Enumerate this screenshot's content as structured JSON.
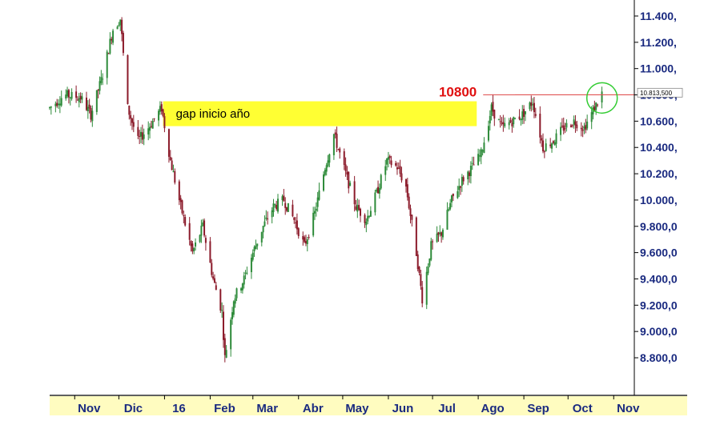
{
  "chart_data": {
    "type": "candlestick",
    "title": "",
    "xlabel": "",
    "ylabel": "",
    "ylim": [
      8500,
      11500
    ],
    "y_ticks": [
      "11.400,",
      "11.200,",
      "11.000,",
      "10.800,",
      "10.600,",
      "10.400,",
      "10.200,",
      "10.000,",
      "9.800,0",
      "9.600,0",
      "9.400,0",
      "9.200,0",
      "9.000,0",
      "8.800,0"
    ],
    "y_tick_values": [
      11400,
      11200,
      11000,
      10800,
      10600,
      10400,
      10200,
      10000,
      9800,
      9600,
      9400,
      9200,
      9000,
      8800
    ],
    "x_ticks": [
      "Nov",
      "Dic",
      "16",
      "Feb",
      "Mar",
      "Abr",
      "May",
      "Jun",
      "Jul",
      "Ago",
      "Sep",
      "Oct",
      "Nov"
    ],
    "x_tick_dates": [
      "2015-11-01",
      "2015-12-01",
      "2016-01-01",
      "2016-02-01",
      "2016-03-01",
      "2016-04-01",
      "2016-05-01",
      "2016-06-01",
      "2016-07-01",
      "2016-08-01",
      "2016-09-01",
      "2016-10-01",
      "2016-11-01"
    ],
    "x_range": [
      "2015-10-15",
      "2016-11-15"
    ],
    "grid": false,
    "up_color": "#2e8b3a",
    "down_color": "#8b1a2a",
    "price_path": [
      [
        "2015-10-15",
        10700
      ],
      [
        "2015-10-25",
        10800
      ],
      [
        "2015-11-05",
        10780
      ],
      [
        "2015-11-12",
        10650
      ],
      [
        "2015-11-20",
        10950
      ],
      [
        "2015-11-27",
        11300
      ],
      [
        "2015-12-02",
        11380
      ],
      [
        "2015-12-07",
        10700
      ],
      [
        "2015-12-14",
        10450
      ],
      [
        "2015-12-21",
        10550
      ],
      [
        "2015-12-30",
        10700
      ],
      [
        "2016-01-05",
        10300
      ],
      [
        "2016-01-12",
        9950
      ],
      [
        "2016-01-20",
        9600
      ],
      [
        "2016-01-27",
        9800
      ],
      [
        "2016-02-03",
        9400
      ],
      [
        "2016-02-09",
        9150
      ],
      [
        "2016-02-11",
        8800
      ],
      [
        "2016-02-17",
        9250
      ],
      [
        "2016-02-24",
        9400
      ],
      [
        "2016-03-01",
        9600
      ],
      [
        "2016-03-08",
        9800
      ],
      [
        "2016-03-15",
        9950
      ],
      [
        "2016-03-22",
        10000
      ],
      [
        "2016-03-29",
        9850
      ],
      [
        "2016-04-05",
        9650
      ],
      [
        "2016-04-12",
        9900
      ],
      [
        "2016-04-19",
        10250
      ],
      [
        "2016-04-25",
        10500
      ],
      [
        "2016-05-03",
        10200
      ],
      [
        "2016-05-10",
        9950
      ],
      [
        "2016-05-17",
        9850
      ],
      [
        "2016-05-24",
        10050
      ],
      [
        "2016-05-31",
        10300
      ],
      [
        "2016-06-07",
        10250
      ],
      [
        "2016-06-13",
        10100
      ],
      [
        "2016-06-20",
        9600
      ],
      [
        "2016-06-24",
        9250
      ],
      [
        "2016-06-30",
        9650
      ],
      [
        "2016-07-07",
        9750
      ],
      [
        "2016-07-14",
        10000
      ],
      [
        "2016-07-21",
        10150
      ],
      [
        "2016-07-28",
        10250
      ],
      [
        "2016-08-03",
        10350
      ],
      [
        "2016-08-10",
        10700
      ],
      [
        "2016-08-17",
        10550
      ],
      [
        "2016-08-24",
        10600
      ],
      [
        "2016-08-31",
        10650
      ],
      [
        "2016-09-07",
        10750
      ],
      [
        "2016-09-14",
        10400
      ],
      [
        "2016-09-21",
        10450
      ],
      [
        "2016-09-28",
        10550
      ],
      [
        "2016-10-05",
        10600
      ],
      [
        "2016-10-12",
        10550
      ],
      [
        "2016-10-19",
        10700
      ],
      [
        "2016-10-24",
        10813.5
      ]
    ],
    "annotations": {
      "gap_label": "gap inicio año",
      "gap_range": [
        10550,
        10800
      ],
      "gap_dates": [
        "2015-12-31",
        "2016-07-31"
      ],
      "level_label": "10800",
      "level_value": 10800,
      "level_dates": [
        "2016-07-31",
        "2016-11-01"
      ],
      "last_price_label": "10.813,500",
      "last_price_value": 10813.5,
      "circle_date": "2016-10-23"
    },
    "colors": {
      "gap_fill": "#ffff33",
      "level_line": "#e05050",
      "level_text": "#e01010",
      "axis_text": "#1a2a80",
      "circle": "#33cc33",
      "axis_band": "#fffcc0",
      "axis_line": "#000000"
    }
  }
}
